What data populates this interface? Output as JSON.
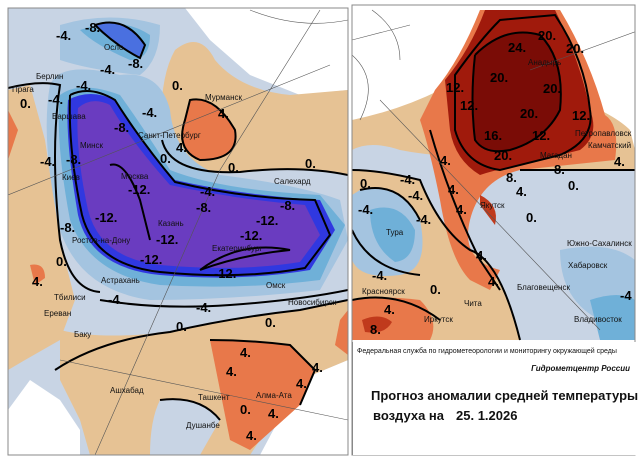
{
  "colors": {
    "neutral": "#c8d4e4",
    "light_blue": "#a4c4e0",
    "mid_blue": "#6fb0d8",
    "blue": "#4a70e0",
    "bright_blue": "#3038e0",
    "purple": "#6a3cc0",
    "tan": "#e6c294",
    "light_orange": "#efa878",
    "orange": "#e8784a",
    "red": "#c03a1c",
    "dark_red": "#a01a0c",
    "darkest_red": "#7a0c06"
  },
  "left_map": {
    "cities": [
      "Осло",
      "Берлин",
      "Прага",
      "Варшава",
      "Минск",
      "Киев",
      "Москва",
      "Санкт-Петербург",
      "Мурманск",
      "Салехард",
      "Казань",
      "Ростов-на-Дону",
      "Екатеринбург",
      "Астрахань",
      "Омск",
      "Новосибирск",
      "Тбилиси",
      "Ереван",
      "Баку",
      "Ашхабад",
      "Ташкент",
      "Душанбе",
      "Алма-Ата"
    ],
    "isolines": [
      "-8.",
      "-8.",
      "-4.",
      "-4.",
      "-4.",
      "-4.",
      "0.",
      "0.",
      "-4.",
      "-8.",
      "-8.",
      "-4.",
      "-4.",
      "0.",
      "4.",
      "4.",
      "0.",
      "0.",
      "-12.",
      "-12.",
      "-12.",
      "-12.",
      "-12.",
      "-8.",
      "-8.",
      "-12.",
      "-12.",
      "0.",
      "4.",
      "-4.",
      "-4.",
      "0.",
      "0.",
      "4.",
      "4.",
      "4.",
      "4.",
      "4.",
      "0.",
      "4.",
      "-8."
    ]
  },
  "right_map": {
    "cities": [
      "Анадырь",
      "Петропавловск",
      "Камчатский",
      "Магадан",
      "Якутск",
      "Тура",
      "Южно-Сахалинск",
      "Хабаровск",
      "Благовещенск",
      "Красноярск",
      "Иркутск",
      "Чита",
      "Владивосток"
    ],
    "isolines": [
      "20.",
      "20.",
      "24.",
      "20.",
      "20.",
      "12.",
      "12.",
      "20.",
      "12.",
      "16.",
      "12.",
      "20.",
      "8.",
      "8.",
      "4.",
      "4.",
      "4.",
      "0.",
      "4.",
      "0.",
      "-4.",
      "-4.",
      "0.",
      "-4.",
      "-4.",
      "-4.",
      "4.",
      "4.",
      "0.",
      "4.",
      "8.",
      "-4",
      "4."
    ]
  },
  "info": {
    "agency": "Федеральная служба по гидрометеорологии и мониторингу окружающей среды",
    "center": "Гидрометцентр России",
    "title_line1": "Прогноз аномалии средней температуры",
    "title_line2": "воздуха на",
    "date": "25. 1.2026"
  }
}
